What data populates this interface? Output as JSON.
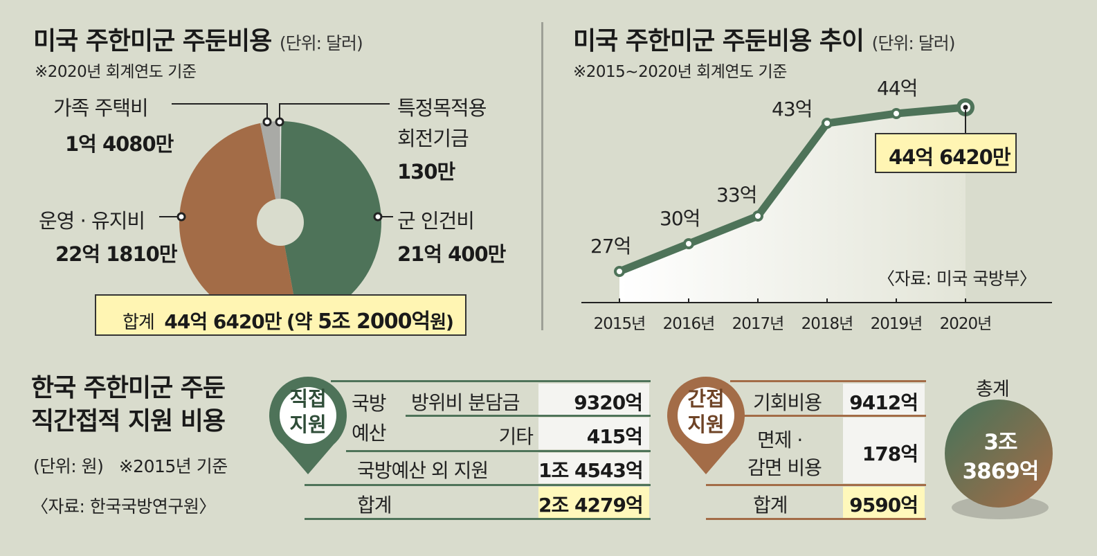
{
  "pie": {
    "title": "미국 주한미군 주둔비용",
    "unit": "(단위: 달러)",
    "note": "※2020년 회계연도 기준",
    "labels": {
      "housing_name": "가족 주택비",
      "housing_value": "1억 4080만",
      "fund_name_1": "특정목적용",
      "fund_name_2": "회전기금",
      "fund_value": "130만",
      "ops_name": "운영 · 유지비",
      "ops_value": "22억 1810만",
      "personnel_name": "군 인건비",
      "personnel_value": "21억 400만"
    },
    "total_label": "합계",
    "total_value": "44억 6420만",
    "total_paren_open": "(약 ",
    "total_krw": "5조 2000억",
    "total_paren_close": "원)",
    "colors": {
      "personnel": "#4e7359",
      "ops": "#a36c47",
      "housing": "#a9aaa6",
      "fund": "#e8e8e4"
    }
  },
  "chart_data": {
    "type": "line",
    "title": "미국 주한미군 주둔비용 추이",
    "unit": "(단위: 달러)",
    "note": "※2015~2020년 회계연도 기준",
    "source": "〈자료: 미국 국방부〉",
    "x": [
      "2015년",
      "2016년",
      "2017년",
      "2018년",
      "2019년",
      "2020년"
    ],
    "values": [
      27,
      30,
      33,
      43,
      44,
      44.642
    ],
    "point_labels": [
      "27억",
      "30억",
      "33억",
      "43억",
      "44억",
      ""
    ],
    "highlight_label": "44억 6420만",
    "line_color": "#4e7359"
  },
  "support": {
    "title_line1": "한국 주한미군 주둔",
    "title_line2": "직간접적 지원 비용",
    "unit": "(단위: 원)",
    "note": "※2015년 기준",
    "source": "〈자료: 한국국방연구원〉",
    "direct": {
      "badge_1": "직접",
      "badge_2": "지원",
      "group_1": "국방",
      "group_2": "예산",
      "rows": [
        {
          "label": "방위비 분담금",
          "value": "9320억"
        },
        {
          "label": "기타",
          "value": "415억"
        },
        {
          "label": "국방예산 외 지원",
          "value": "1조 4543억"
        }
      ],
      "total_label": "합계",
      "total_value": "2조 4279억"
    },
    "indirect": {
      "badge_1": "간접",
      "badge_2": "지원",
      "rows": [
        {
          "label": "기회비용",
          "value": "9412억"
        },
        {
          "label_1": "면제 ·",
          "label_2": "감면 비용",
          "value": "178억"
        }
      ],
      "total_label": "합계",
      "total_value": "9590억"
    },
    "grand_total_label": "총계",
    "grand_total_1": "3조",
    "grand_total_2": "3869억"
  }
}
